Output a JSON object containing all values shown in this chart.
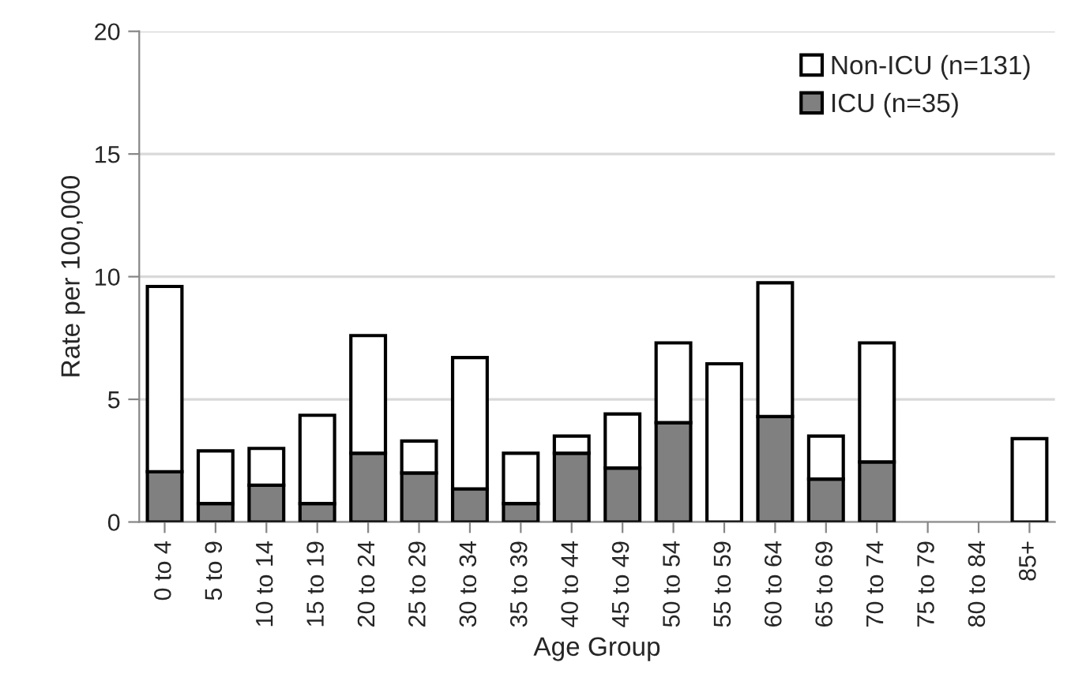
{
  "chart_data": {
    "type": "bar",
    "stacked": true,
    "xlabel": "Age Group",
    "ylabel": "Rate per 100,000",
    "categories": [
      "0 to 4",
      "5 to 9",
      "10 to 14",
      "15 to 19",
      "20 to 24",
      "25 to 29",
      "30 to 34",
      "35 to 39",
      "40 to 44",
      "45 to 49",
      "50 to 54",
      "55 to 59",
      "60 to 64",
      "65 to 69",
      "70 to 74",
      "75 to 79",
      "80 to 84",
      "85+"
    ],
    "series": [
      {
        "name": "ICU (n=35)",
        "color": "#808080",
        "values": [
          2.05,
          0.75,
          1.5,
          0.75,
          2.8,
          2.0,
          1.35,
          0.75,
          2.8,
          2.2,
          4.05,
          0,
          4.3,
          1.75,
          2.45,
          0,
          0,
          0
        ]
      },
      {
        "name": "Non-ICU (n=131)",
        "color": "#ffffff",
        "values": [
          7.55,
          2.15,
          1.5,
          3.6,
          4.8,
          1.3,
          5.35,
          2.05,
          0.7,
          2.2,
          3.25,
          6.45,
          5.45,
          1.75,
          4.85,
          0,
          0,
          3.4
        ]
      }
    ],
    "ylim": [
      0,
      20
    ],
    "yticks": [
      0,
      5,
      10,
      15,
      20
    ],
    "grid": "y",
    "legend": "top right"
  }
}
